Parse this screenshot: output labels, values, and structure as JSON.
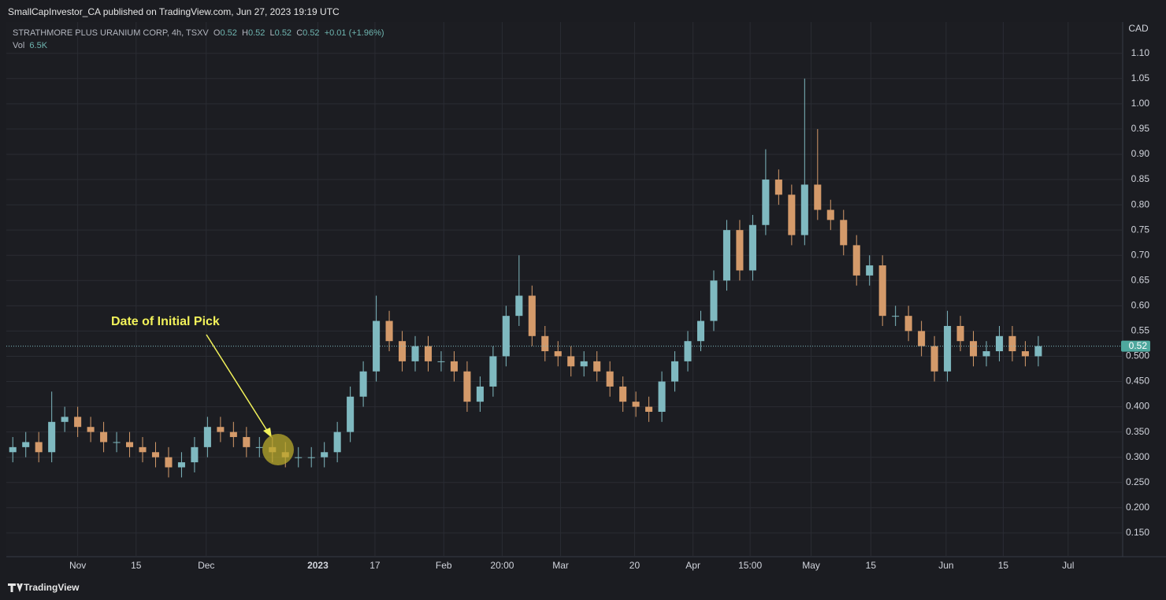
{
  "header": {
    "title": "SmallCapInvestor_CA published on TradingView.com, Jun 27, 2023 19:19 UTC"
  },
  "footer": {
    "brand": "TradingView"
  },
  "chart_data": {
    "type": "candlestick",
    "symbol": "STRATHMORE PLUS URANIUM CORP, 4h, TSXV",
    "ohlc_legend": [
      {
        "label": "O",
        "value": "0.52"
      },
      {
        "label": "H",
        "value": "0.52"
      },
      {
        "label": "L",
        "value": "0.52"
      },
      {
        "label": "C",
        "value": "0.52"
      }
    ],
    "change": "+0.01 (+1.96%)",
    "volume_legend": {
      "label": "Vol",
      "value": "6.5K"
    },
    "currency": "CAD",
    "annotation": "Date of Initial Pick",
    "last_price": 0.52,
    "up_color": "#7fb9c0",
    "down_color": "#d49a6a",
    "open": [
      0.31,
      0.32,
      0.33,
      0.31,
      0.37,
      0.38,
      0.36,
      0.35,
      0.33,
      0.33,
      0.32,
      0.31,
      0.3,
      0.28,
      0.29,
      0.32,
      0.36,
      0.35,
      0.34,
      0.32,
      0.32,
      0.31,
      0.3,
      0.3,
      0.3,
      0.31,
      0.35,
      0.42,
      0.47,
      0.57,
      0.53,
      0.49,
      0.52,
      0.49,
      0.49,
      0.47,
      0.41,
      0.44,
      0.5,
      0.58,
      0.62,
      0.54,
      0.51,
      0.5,
      0.48,
      0.49,
      0.47,
      0.44,
      0.41,
      0.4,
      0.39,
      0.45,
      0.49,
      0.53,
      0.57,
      0.65,
      0.75,
      0.67,
      0.76,
      0.85,
      0.82,
      0.74,
      0.84,
      0.79,
      0.77,
      0.72,
      0.66,
      0.68,
      0.58,
      0.58,
      0.55,
      0.52,
      0.47,
      0.56,
      0.53,
      0.5,
      0.51,
      0.54,
      0.51,
      0.5
    ],
    "high": [
      0.34,
      0.35,
      0.35,
      0.43,
      0.4,
      0.4,
      0.38,
      0.37,
      0.35,
      0.35,
      0.34,
      0.33,
      0.32,
      0.31,
      0.34,
      0.38,
      0.38,
      0.37,
      0.36,
      0.34,
      0.34,
      0.33,
      0.32,
      0.32,
      0.33,
      0.37,
      0.44,
      0.49,
      0.62,
      0.59,
      0.55,
      0.54,
      0.54,
      0.51,
      0.51,
      0.49,
      0.46,
      0.52,
      0.6,
      0.7,
      0.64,
      0.56,
      0.53,
      0.52,
      0.51,
      0.51,
      0.49,
      0.46,
      0.43,
      0.42,
      0.47,
      0.51,
      0.55,
      0.59,
      0.67,
      0.77,
      0.77,
      0.78,
      0.91,
      0.87,
      0.84,
      1.05,
      0.95,
      0.81,
      0.79,
      0.74,
      0.7,
      0.7,
      0.6,
      0.6,
      0.57,
      0.54,
      0.59,
      0.58,
      0.55,
      0.53,
      0.56,
      0.56,
      0.53,
      0.54
    ],
    "low": [
      0.29,
      0.3,
      0.29,
      0.29,
      0.35,
      0.34,
      0.33,
      0.31,
      0.31,
      0.3,
      0.29,
      0.28,
      0.26,
      0.26,
      0.27,
      0.3,
      0.33,
      0.32,
      0.3,
      0.3,
      0.29,
      0.28,
      0.28,
      0.28,
      0.28,
      0.29,
      0.33,
      0.4,
      0.45,
      0.51,
      0.47,
      0.47,
      0.47,
      0.47,
      0.45,
      0.39,
      0.39,
      0.42,
      0.48,
      0.56,
      0.52,
      0.49,
      0.48,
      0.46,
      0.46,
      0.45,
      0.42,
      0.39,
      0.38,
      0.37,
      0.37,
      0.43,
      0.47,
      0.51,
      0.55,
      0.63,
      0.65,
      0.65,
      0.74,
      0.8,
      0.72,
      0.72,
      0.77,
      0.75,
      0.7,
      0.64,
      0.64,
      0.56,
      0.56,
      0.53,
      0.5,
      0.45,
      0.45,
      0.51,
      0.48,
      0.48,
      0.49,
      0.49,
      0.48,
      0.48
    ],
    "close": [
      0.32,
      0.33,
      0.31,
      0.37,
      0.38,
      0.36,
      0.35,
      0.33,
      0.33,
      0.32,
      0.31,
      0.3,
      0.28,
      0.29,
      0.32,
      0.36,
      0.35,
      0.34,
      0.32,
      0.32,
      0.31,
      0.3,
      0.3,
      0.3,
      0.31,
      0.35,
      0.42,
      0.47,
      0.57,
      0.53,
      0.49,
      0.52,
      0.49,
      0.49,
      0.47,
      0.41,
      0.44,
      0.5,
      0.58,
      0.62,
      0.54,
      0.51,
      0.5,
      0.48,
      0.49,
      0.47,
      0.44,
      0.41,
      0.4,
      0.39,
      0.45,
      0.49,
      0.53,
      0.57,
      0.65,
      0.75,
      0.67,
      0.76,
      0.85,
      0.82,
      0.74,
      0.84,
      0.79,
      0.77,
      0.72,
      0.66,
      0.68,
      0.58,
      0.58,
      0.55,
      0.52,
      0.47,
      0.56,
      0.53,
      0.5,
      0.51,
      0.54,
      0.51,
      0.5,
      0.52
    ],
    "xlim": [
      0,
      86
    ],
    "xticks": [
      {
        "value": 5.5,
        "label": "Nov"
      },
      {
        "value": 10,
        "label": "15"
      },
      {
        "value": 15.4,
        "label": "Dec"
      },
      {
        "value": 24,
        "label": "2023"
      },
      {
        "value": 28.4,
        "label": "17"
      },
      {
        "value": 33.7,
        "label": "Feb"
      },
      {
        "value": 38.2,
        "label": "20:00"
      },
      {
        "value": 42.7,
        "label": "Mar"
      },
      {
        "value": 48.4,
        "label": "20"
      },
      {
        "value": 52.9,
        "label": "Apr"
      },
      {
        "value": 57.3,
        "label": "15:00"
      },
      {
        "value": 62,
        "label": "May"
      },
      {
        "value": 66.6,
        "label": "15"
      },
      {
        "value": 72.4,
        "label": "Jun"
      },
      {
        "value": 76.8,
        "label": "15"
      },
      {
        "value": 81.8,
        "label": "Jul"
      }
    ],
    "ylim": [
      0.103,
      1.162
    ],
    "yticks": [
      {
        "value": 1.1,
        "label": "1.10"
      },
      1.05,
      {
        "value": 1,
        "label": "1.00"
      },
      0.95,
      {
        "value": 0.9,
        "label": "0.90"
      },
      0.85,
      {
        "value": 0.8,
        "label": "0.80"
      },
      0.75,
      {
        "value": 0.7,
        "label": "0.70"
      },
      0.65,
      {
        "value": 0.6,
        "label": "0.60"
      },
      0.55,
      {
        "value": 0.5,
        "label": "0.500"
      },
      {
        "value": 0.45,
        "label": "0.450"
      },
      {
        "value": 0.4,
        "label": "0.400"
      },
      {
        "value": 0.35,
        "label": "0.350"
      },
      {
        "value": 0.3,
        "label": "0.300"
      },
      {
        "value": 0.25,
        "label": "0.250"
      },
      {
        "value": 0.2,
        "label": "0.200"
      },
      {
        "value": 0.15,
        "label": "0.150"
      }
    ],
    "grid": true
  }
}
